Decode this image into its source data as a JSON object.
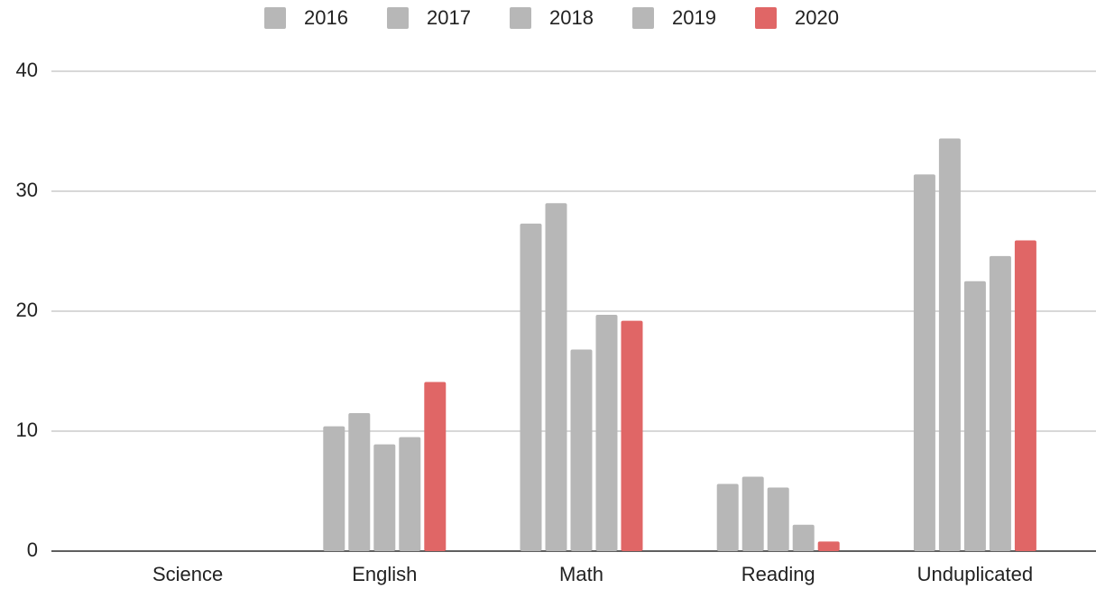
{
  "chart_data": {
    "type": "bar",
    "categories": [
      "Science",
      "English",
      "Math",
      "Reading",
      "Unduplicated"
    ],
    "series": [
      {
        "name": "2016",
        "color": "#b7b7b7",
        "values": [
          null,
          10.4,
          27.3,
          5.6,
          31.4
        ]
      },
      {
        "name": "2017",
        "color": "#b7b7b7",
        "values": [
          null,
          11.5,
          29.0,
          6.2,
          34.4
        ]
      },
      {
        "name": "2018",
        "color": "#b7b7b7",
        "values": [
          null,
          8.9,
          16.8,
          5.3,
          22.5
        ]
      },
      {
        "name": "2019",
        "color": "#b7b7b7",
        "values": [
          null,
          9.5,
          19.7,
          2.2,
          24.6
        ]
      },
      {
        "name": "2020",
        "color": "#e06666",
        "values": [
          null,
          14.1,
          19.2,
          0.8,
          25.9
        ]
      }
    ],
    "ylim": [
      0,
      40
    ],
    "yticks": [
      0,
      10,
      20,
      30,
      40
    ],
    "grid": true,
    "legend": "top"
  }
}
